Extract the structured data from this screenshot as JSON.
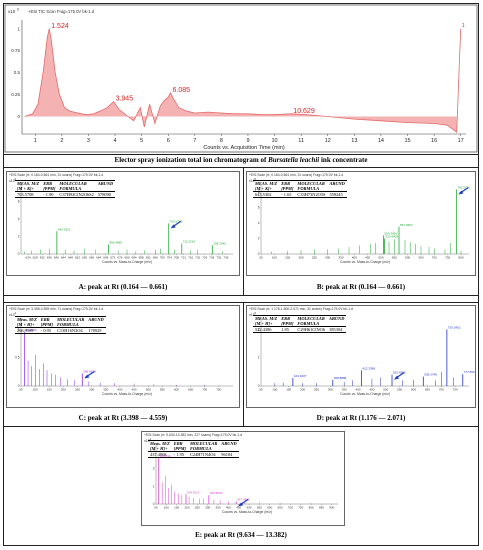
{
  "tic": {
    "header": "+ESI TIC Scan Frag=175.0V bk-1.d",
    "ymult": "x10",
    "yexp": "9",
    "xlabel": "Counts vs. Acquisition Time (min)",
    "caption_a": "Elector spray ionization total ion chromatogram of ",
    "caption_species": "Bursatella leachii",
    "caption_b": " ink concentrate"
  },
  "panels": [
    {
      "id": "A",
      "header": "+ESI Scan (rt: 0.164-0.661 min, 31 scans) Frag=175.0V bk-1.d",
      "ymult": "x10",
      "yexp": "6",
      "xlabel": "Counts vs. Mass-to-Charge (m/z)",
      "table": {
        "h1": [
          "MEAS. M/Z",
          "ERR",
          "MOLECULAR",
          "ABUND"
        ],
        "h2": [
          "[M + K]+",
          "[PPM]",
          "FORMULA",
          ""
        ],
        "row": [
          "703.5708",
          "- 1.90",
          "C37H92ClN2O6S2",
          "578090"
        ]
      },
      "caption": "A: peak at Rt (0.164 — 0.661)"
    },
    {
      "id": "B",
      "header": "+ESI Scan (rt: 0.164-0.661 min, 31 scans) Frag=175.0V bk-1.d",
      "ymult": "x10",
      "yexp": "5",
      "xlabel": "Counts vs. Mass-to-Charge (m/z)",
      "table": {
        "h1": [
          "MEAS. M/Z",
          "ERR",
          "MOLECULAR",
          "ABUND"
        ],
        "h2": [
          "[M + K]+",
          "[PPM]",
          "FORMULA",
          ""
        ],
        "row": [
          "645.5302",
          "- 1.65",
          "C33H73N2O5S",
          "558245"
        ]
      },
      "caption": "B: peak at Rt (0.164 — 0.661)"
    },
    {
      "id": "C",
      "header": "+ESI Scan (rt: 3.398-4.559 min, 71 scans) Frag=175.0V bk-1.d",
      "ymult": "x10",
      "yexp": "4",
      "xlabel": "Counts vs. Mass-to-Charge (m/z)",
      "table": {
        "h1": [
          "Meas. M/Z",
          "ERR",
          "MOLECULAR",
          "ABUND"
        ],
        "h2": [
          "[M + H]+",
          "[PPM]",
          "FORMULA",
          ""
        ],
        "row": [
          "266.9169",
          "- 0.95",
          "C13H16N3O4",
          "170929"
        ]
      },
      "caption": "C: peak at Rt (3.398 — 4.559)"
    },
    {
      "id": "D",
      "header": "+ESI Scan (rt: 1.176-1.800-2.071 min, 31 scans) Frag=175.0V bk-1.d",
      "ymult": "x10",
      "yexp": "5",
      "xlabel": "Counts vs. Mass-to-Charge (m/z)",
      "table": {
        "h1": [
          "MEAS. M/Z",
          "ERR",
          "MOLECULAR",
          "ABUND"
        ],
        "h2": [
          "[M + H]+",
          "[PPM]",
          "FORMULA",
          ""
        ],
        "row": [
          "522.4386",
          "1.85",
          "C29H61ClNO6",
          "185304"
        ]
      },
      "caption": "D: peak at Rt (1.176 — 2.071)"
    },
    {
      "id": "E",
      "header": "+ESI Scan (rt: 9.634-13.382 min, 227 scans) Frag=175.0V bk-1.d",
      "ymult": "x10",
      "yexp": "4",
      "xlabel": "Counts vs. Mass-to-Charge (m/z)",
      "table": {
        "h1": [
          "Meas. M/Z",
          "ERR",
          "MOLECULAR",
          "ABUND"
        ],
        "h2": [
          "[M + H]+",
          "[PPM]",
          "FORMULA",
          ""
        ],
        "row": [
          "437.4968",
          "- 1.95",
          "C24H71N4O4",
          "96104"
        ]
      },
      "caption": "E: peak at Rt (9.634 — 13.382)"
    }
  ],
  "chart_data": [
    {
      "type": "line",
      "title": "",
      "xlabel": "Counts vs. Acquisition Time (min)",
      "ylabel": "",
      "xlim": [
        0.5,
        17.2
      ],
      "ylim": [
        -0.2,
        1.1
      ],
      "xticks": [
        1,
        2,
        3,
        4,
        5,
        6,
        7,
        8,
        9,
        10,
        11,
        12,
        13,
        14,
        15,
        16,
        17
      ],
      "yticks": [
        0,
        0.25,
        0.5,
        0.75,
        1
      ],
      "yticklabels": [
        "0",
        "0.25",
        "0.5",
        "0.75",
        "1"
      ],
      "color": "#e46a6a",
      "peak_labels": [
        {
          "x": 1.524,
          "y": 1.0,
          "label": "1.524"
        },
        {
          "x": 3.945,
          "y": 0.17,
          "label": "3.945"
        },
        {
          "x": 6.085,
          "y": 0.27,
          "label": "6.085"
        },
        {
          "x": 10.629,
          "y": 0.03,
          "label": "10.629"
        }
      ],
      "x": [
        0.6,
        0.9,
        1.1,
        1.3,
        1.45,
        1.524,
        1.6,
        1.75,
        1.9,
        2.1,
        2.3,
        2.6,
        2.9,
        3.2,
        3.5,
        3.7,
        3.945,
        4.15,
        4.4,
        4.7,
        4.95,
        5.1,
        5.3,
        5.5,
        5.7,
        5.85,
        6.0,
        6.085,
        6.2,
        6.4,
        6.7,
        7.0,
        7.5,
        8.0,
        8.5,
        9.0,
        9.5,
        10.0,
        10.629,
        11.2,
        12.0,
        13.0,
        14.0,
        15.0,
        16.0,
        16.5,
        16.85,
        17.0
      ],
      "y": [
        0.0,
        0.03,
        0.14,
        0.52,
        0.9,
        1.0,
        0.88,
        0.5,
        0.26,
        0.1,
        0.06,
        0.04,
        0.02,
        0.03,
        0.07,
        0.1,
        0.17,
        0.08,
        0.02,
        -0.05,
        0.1,
        -0.12,
        0.14,
        -0.08,
        0.12,
        0.18,
        0.22,
        0.27,
        0.2,
        0.1,
        0.06,
        0.04,
        0.05,
        0.04,
        0.03,
        0.03,
        0.02,
        0.02,
        0.03,
        0.02,
        0.0,
        -0.03,
        -0.05,
        -0.07,
        -0.08,
        -0.1,
        -0.18,
        1.0
      ]
    },
    {
      "type": "bar",
      "title": "",
      "xlabel": "Counts vs. Mass-to-Charge (m/z)",
      "xlim": [
        620,
        740
      ],
      "xticks": [
        624,
        628,
        632,
        636,
        640,
        644,
        648,
        652,
        656,
        660,
        664,
        668,
        672,
        676,
        680,
        684,
        688,
        692,
        696,
        700,
        704,
        708,
        712,
        716,
        720,
        724,
        728,
        732,
        736
      ],
      "yticks": [
        0,
        2,
        4,
        6
      ],
      "ylim": [
        0,
        8
      ],
      "peaks": [
        {
          "x": 640.3,
          "y": 2.6,
          "label": "640.3321"
        },
        {
          "x": 669.5,
          "y": 1.1,
          "label": "669.4866"
        },
        {
          "x": 703.6,
          "y": 3.5,
          "label": "703.5708"
        },
        {
          "x": 711.0,
          "y": 1.2,
          "label": "711.0315"
        },
        {
          "x": 728.3,
          "y": 1.0,
          "label": "728.3040"
        }
      ],
      "minor": [
        [
          622,
          0.3
        ],
        [
          626,
          0.4
        ],
        [
          631,
          0.5
        ],
        [
          636,
          0.6
        ],
        [
          645,
          0.5
        ],
        [
          650,
          0.4
        ],
        [
          656,
          0.6
        ],
        [
          662,
          0.5
        ],
        [
          675,
          0.4
        ],
        [
          680,
          0.5
        ],
        [
          685,
          0.3
        ],
        [
          690,
          0.4
        ],
        [
          696,
          0.5
        ],
        [
          699,
          0.6
        ],
        [
          707,
          0.5
        ],
        [
          716,
          0.4
        ],
        [
          720,
          0.5
        ],
        [
          734,
          0.3
        ]
      ],
      "color": "#22aa33"
    },
    {
      "type": "bar",
      "title": "",
      "xlabel": "Counts vs. Mass-to-Charge (m/z)",
      "xlim": [
        50,
        830
      ],
      "xticks": [
        50,
        100,
        150,
        200,
        250,
        300,
        350,
        400,
        450,
        500,
        550,
        600,
        650,
        700,
        750,
        800
      ],
      "yticks": [
        0,
        2,
        4,
        6,
        8
      ],
      "ylim": [
        0,
        9
      ],
      "peaks": [
        {
          "x": 509.3,
          "y": 2.4,
          "label": "509.3426"
        },
        {
          "x": 567.5,
          "y": 3.5,
          "label": "567.4654"
        },
        {
          "x": 513.4,
          "y": 2.0,
          "label": "513.4403"
        },
        {
          "x": 782.6,
          "y": 8.3,
          "label": "782.5731"
        }
      ],
      "minor": [
        [
          90,
          0.3
        ],
        [
          150,
          0.4
        ],
        [
          200,
          0.5
        ],
        [
          250,
          0.6
        ],
        [
          300,
          0.6
        ],
        [
          340,
          0.7
        ],
        [
          380,
          0.9
        ],
        [
          420,
          1.1
        ],
        [
          460,
          1.3
        ],
        [
          480,
          1.4
        ],
        [
          530,
          1.6
        ],
        [
          550,
          1.9
        ],
        [
          590,
          1.8
        ],
        [
          610,
          1.5
        ],
        [
          630,
          1.3
        ],
        [
          650,
          1.0
        ],
        [
          680,
          0.9
        ],
        [
          700,
          0.7
        ],
        [
          740,
          0.6
        ],
        [
          760,
          1.4
        ],
        [
          800,
          0.4
        ]
      ],
      "color": "#22aa33"
    },
    {
      "type": "bar",
      "title": "",
      "xlabel": "Counts vs. Mass-to-Charge (m/z)",
      "xlim": [
        50,
        800
      ],
      "xticks": [
        50,
        100,
        150,
        200,
        250,
        300,
        350,
        400,
        450,
        500,
        550,
        600,
        650,
        700,
        750
      ],
      "yticks": [
        0,
        0.5,
        1
      ],
      "ylim": [
        0,
        1.2
      ],
      "peaks": [
        {
          "x": 63.0,
          "y": 0.95,
          "label": "63.0796"
        },
        {
          "x": 266.9,
          "y": 0.22,
          "label": "266.9169"
        }
      ],
      "minor": [
        [
          75,
          0.45
        ],
        [
          88,
          0.35
        ],
        [
          101,
          0.55
        ],
        [
          115,
          0.3
        ],
        [
          130,
          0.4
        ],
        [
          142,
          0.28
        ],
        [
          157,
          0.22
        ],
        [
          173,
          0.2
        ],
        [
          190,
          0.15
        ],
        [
          215,
          0.12
        ],
        [
          240,
          0.1
        ],
        [
          290,
          0.08
        ],
        [
          330,
          0.06
        ],
        [
          380,
          0.05
        ],
        [
          450,
          0.04
        ],
        [
          520,
          0.03
        ],
        [
          600,
          0.02
        ],
        [
          700,
          0.02
        ]
      ],
      "color": "#8a2be2"
    },
    {
      "type": "bar",
      "title": "",
      "xlabel": "Counts vs. Mass-to-Charge (m/z)",
      "xlim": [
        50,
        800
      ],
      "xticks": [
        50,
        100,
        150,
        200,
        250,
        300,
        350,
        400,
        450,
        500,
        550,
        600,
        650,
        700,
        750
      ],
      "yticks": [
        0,
        1,
        2
      ],
      "ylim": [
        0,
        2.4
      ],
      "peaks": [
        {
          "x": 164.9,
          "y": 0.28,
          "label": "164.9437"
        },
        {
          "x": 308.9,
          "y": 0.22,
          "label": "308.8886"
        },
        {
          "x": 412.3,
          "y": 0.55,
          "label": "412.3398"
        },
        {
          "x": 522.4,
          "y": 0.4,
          "label": "522.4386"
        },
        {
          "x": 635.3,
          "y": 0.33,
          "label": "635.3748"
        },
        {
          "x": 720.2,
          "y": 2.0,
          "label": "720.2452"
        },
        {
          "x": 777.5,
          "y": 0.42,
          "label": "777.5518"
        }
      ],
      "minor": [
        [
          100,
          0.1
        ],
        [
          130,
          0.12
        ],
        [
          200,
          0.1
        ],
        [
          250,
          0.1
        ],
        [
          350,
          0.14
        ],
        [
          380,
          0.2
        ],
        [
          450,
          0.25
        ],
        [
          480,
          0.3
        ],
        [
          560,
          0.2
        ],
        [
          600,
          0.22
        ],
        [
          680,
          0.2
        ],
        [
          700,
          0.5
        ],
        [
          745,
          0.3
        ]
      ],
      "color": "#2233cc"
    },
    {
      "type": "bar",
      "title": "",
      "xlabel": "Counts vs. Mass-to-Charge (m/z)",
      "xlim": [
        50,
        930
      ],
      "xticks": [
        50,
        100,
        150,
        200,
        250,
        300,
        350,
        400,
        450,
        500,
        550,
        600,
        650,
        700,
        750,
        800,
        850,
        900
      ],
      "yticks": [
        0,
        1,
        2,
        3
      ],
      "ylim": [
        0,
        3.4
      ],
      "peaks": [
        {
          "x": 63.0,
          "y": 2.6,
          "label": "63.0796"
        },
        {
          "x": 194.9,
          "y": 0.55,
          "label": "194.9313"
        },
        {
          "x": 305.6,
          "y": 0.5,
          "label": "305.5699"
        },
        {
          "x": 437.5,
          "y": 0.15,
          "label": "437.4968"
        }
      ],
      "minor": [
        [
          80,
          1.2
        ],
        [
          95,
          1.6
        ],
        [
          110,
          0.9
        ],
        [
          125,
          1.1
        ],
        [
          140,
          0.7
        ],
        [
          160,
          0.6
        ],
        [
          175,
          0.5
        ],
        [
          210,
          0.4
        ],
        [
          230,
          0.35
        ],
        [
          260,
          0.3
        ],
        [
          280,
          0.3
        ],
        [
          330,
          0.25
        ],
        [
          360,
          0.2
        ],
        [
          400,
          0.15
        ],
        [
          480,
          0.1
        ],
        [
          550,
          0.08
        ],
        [
          650,
          0.05
        ],
        [
          800,
          0.04
        ]
      ],
      "color": "#dd44cc"
    }
  ]
}
